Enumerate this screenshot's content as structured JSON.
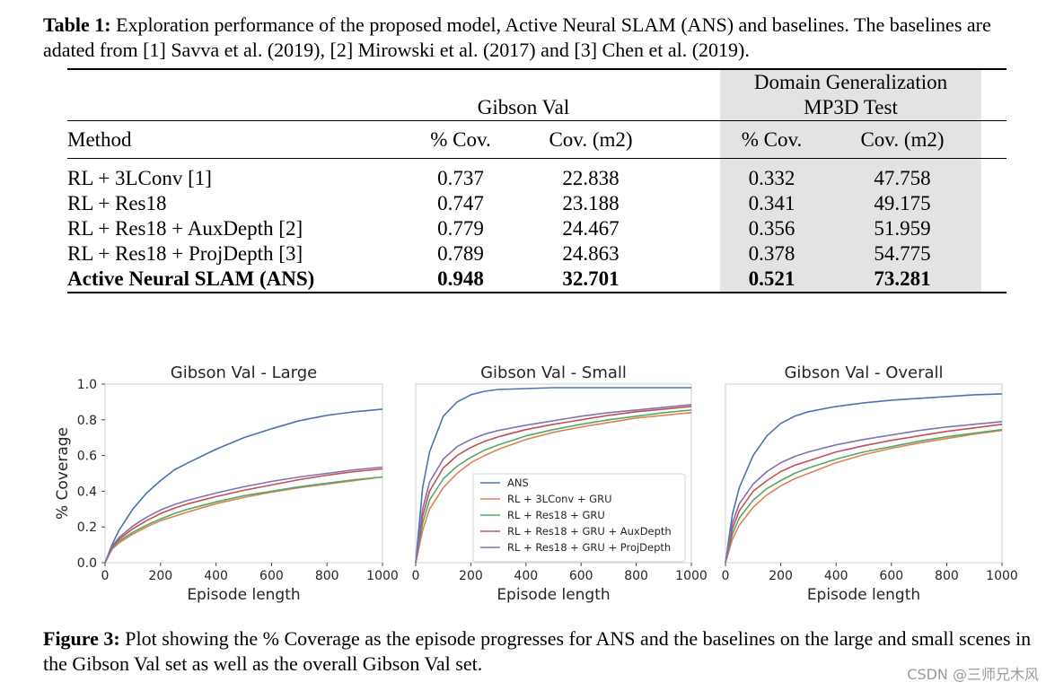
{
  "table": {
    "caption_label": "Table 1:",
    "caption_text": " Exploration performance of the proposed model, Active Neural SLAM (ANS) and baselines. The baselines are adated from [1] Savva et al. (2019), [2] Mirowski et al. (2017) and [3] Chen et al. (2019).",
    "group_gibson": "Gibson Val",
    "group_domain_line1": "Domain Generalization",
    "group_domain_line2": "MP3D Test",
    "col_method": "Method",
    "col_cov_pct": "% Cov.",
    "col_cov_m2": "Cov. (m2)",
    "rows": [
      {
        "method": "RL + 3LConv [1]",
        "g_pct": "0.737",
        "g_m2": "22.838",
        "m_pct": "0.332",
        "m_m2": "47.758"
      },
      {
        "method": "RL + Res18",
        "g_pct": "0.747",
        "g_m2": "23.188",
        "m_pct": "0.341",
        "m_m2": "49.175"
      },
      {
        "method": "RL + Res18 + AuxDepth [2]",
        "g_pct": "0.779",
        "g_m2": "24.467",
        "m_pct": "0.356",
        "m_m2": "51.959"
      },
      {
        "method": "RL + Res18 + ProjDepth [3]",
        "g_pct": "0.789",
        "g_m2": "24.863",
        "m_pct": "0.378",
        "m_m2": "54.775"
      },
      {
        "method": "Active Neural SLAM (ANS)",
        "g_pct": "0.948",
        "g_m2": "32.701",
        "m_pct": "0.521",
        "m_m2": "73.281"
      }
    ]
  },
  "figure": {
    "caption_label": "Figure 3:",
    "caption_text": " Plot showing the % Coverage as the episode progresses for ANS and the baselines on the large and small scenes in the Gibson Val set as well as the overall Gibson Val set."
  },
  "watermark": "CSDN @三师兄木风",
  "chart_data": [
    {
      "type": "line",
      "title": "Gibson Val - Large",
      "xlabel": "Episode length",
      "ylabel": "% Coverage",
      "xlim": [
        0,
        1000
      ],
      "ylim": [
        0,
        1.0
      ],
      "xticks": [
        0,
        200,
        400,
        600,
        800,
        1000
      ],
      "yticks": [
        "0.0",
        "0.2",
        "0.4",
        "0.6",
        "0.8",
        "1.0"
      ],
      "x": [
        0,
        25,
        50,
        100,
        150,
        200,
        250,
        300,
        400,
        500,
        600,
        700,
        800,
        900,
        1000
      ],
      "series": [
        {
          "name": "ANS",
          "color": "#4c72b0",
          "values": [
            0,
            0.1,
            0.18,
            0.3,
            0.39,
            0.46,
            0.52,
            0.56,
            0.635,
            0.7,
            0.75,
            0.795,
            0.825,
            0.845,
            0.86
          ]
        },
        {
          "name": "RL + 3LConv + GRU",
          "color": "#dd8452",
          "values": [
            0,
            0.075,
            0.11,
            0.16,
            0.2,
            0.235,
            0.26,
            0.285,
            0.33,
            0.365,
            0.395,
            0.42,
            0.44,
            0.46,
            0.48
          ]
        },
        {
          "name": "RL + Res18 + GRU",
          "color": "#55a868",
          "values": [
            0,
            0.08,
            0.12,
            0.17,
            0.21,
            0.245,
            0.275,
            0.3,
            0.34,
            0.375,
            0.4,
            0.425,
            0.445,
            0.465,
            0.48
          ]
        },
        {
          "name": "RL + Res18 + GRU + AuxDepth",
          "color": "#c44e52",
          "values": [
            0,
            0.085,
            0.13,
            0.19,
            0.235,
            0.275,
            0.305,
            0.33,
            0.37,
            0.405,
            0.435,
            0.465,
            0.49,
            0.51,
            0.525
          ]
        },
        {
          "name": "RL + Res18 + GRU + ProjDepth",
          "color": "#8172b3",
          "values": [
            0,
            0.09,
            0.14,
            0.205,
            0.255,
            0.295,
            0.325,
            0.35,
            0.39,
            0.425,
            0.455,
            0.48,
            0.5,
            0.52,
            0.535
          ]
        }
      ]
    },
    {
      "type": "line",
      "title": "Gibson Val - Small",
      "xlabel": "Episode length",
      "ylabel": "",
      "xlim": [
        0,
        1000
      ],
      "ylim": [
        0,
        1.0
      ],
      "xticks": [
        0,
        200,
        400,
        600,
        800,
        1000
      ],
      "yticks": [],
      "x": [
        0,
        25,
        50,
        100,
        150,
        200,
        250,
        300,
        400,
        500,
        600,
        700,
        800,
        900,
        1000
      ],
      "series": [
        {
          "name": "ANS",
          "color": "#4c72b0",
          "values": [
            0,
            0.42,
            0.62,
            0.82,
            0.9,
            0.94,
            0.96,
            0.97,
            0.975,
            0.98,
            0.98,
            0.98,
            0.98,
            0.98,
            0.98
          ]
        },
        {
          "name": "RL + 3LConv + GRU",
          "color": "#dd8452",
          "values": [
            0,
            0.18,
            0.3,
            0.42,
            0.5,
            0.56,
            0.6,
            0.635,
            0.69,
            0.73,
            0.76,
            0.785,
            0.81,
            0.825,
            0.84
          ]
        },
        {
          "name": "RL + Res18 + GRU",
          "color": "#55a868",
          "values": [
            0,
            0.22,
            0.35,
            0.47,
            0.54,
            0.59,
            0.63,
            0.66,
            0.71,
            0.745,
            0.775,
            0.8,
            0.82,
            0.84,
            0.855
          ]
        },
        {
          "name": "RL + Res18 + GRU + AuxDepth",
          "color": "#c44e52",
          "values": [
            0,
            0.26,
            0.4,
            0.53,
            0.6,
            0.645,
            0.68,
            0.705,
            0.745,
            0.775,
            0.8,
            0.825,
            0.845,
            0.86,
            0.875
          ]
        },
        {
          "name": "RL + Res18 + GRU + ProjDepth",
          "color": "#8172b3",
          "values": [
            0,
            0.3,
            0.45,
            0.58,
            0.65,
            0.69,
            0.72,
            0.74,
            0.77,
            0.795,
            0.82,
            0.84,
            0.855,
            0.87,
            0.885
          ]
        }
      ]
    },
    {
      "type": "line",
      "title": "Gibson Val - Overall",
      "xlabel": "Episode length",
      "ylabel": "",
      "xlim": [
        0,
        1000
      ],
      "ylim": [
        0,
        1.0
      ],
      "xticks": [
        0,
        200,
        400,
        600,
        800,
        1000
      ],
      "yticks": [],
      "x": [
        0,
        25,
        50,
        100,
        150,
        200,
        250,
        300,
        400,
        500,
        600,
        700,
        800,
        900,
        1000
      ],
      "series": [
        {
          "name": "ANS",
          "color": "#4c72b0",
          "values": [
            0,
            0.27,
            0.42,
            0.6,
            0.71,
            0.78,
            0.82,
            0.845,
            0.875,
            0.895,
            0.91,
            0.92,
            0.93,
            0.94,
            0.945
          ]
        },
        {
          "name": "RL + 3LConv + GRU",
          "color": "#dd8452",
          "values": [
            0,
            0.13,
            0.21,
            0.31,
            0.38,
            0.43,
            0.47,
            0.5,
            0.56,
            0.605,
            0.64,
            0.67,
            0.695,
            0.72,
            0.74
          ]
        },
        {
          "name": "RL + Res18 + GRU",
          "color": "#55a868",
          "values": [
            0,
            0.16,
            0.25,
            0.35,
            0.415,
            0.46,
            0.5,
            0.53,
            0.58,
            0.62,
            0.65,
            0.68,
            0.705,
            0.725,
            0.745
          ]
        },
        {
          "name": "RL + Res18 + GRU + AuxDepth",
          "color": "#c44e52",
          "values": [
            0,
            0.19,
            0.29,
            0.4,
            0.46,
            0.51,
            0.545,
            0.57,
            0.62,
            0.655,
            0.685,
            0.71,
            0.735,
            0.755,
            0.775
          ]
        },
        {
          "name": "RL + Res18 + GRU + ProjDepth",
          "color": "#8172b3",
          "values": [
            0,
            0.22,
            0.33,
            0.44,
            0.51,
            0.56,
            0.595,
            0.62,
            0.66,
            0.69,
            0.715,
            0.74,
            0.76,
            0.775,
            0.79
          ]
        }
      ]
    }
  ]
}
